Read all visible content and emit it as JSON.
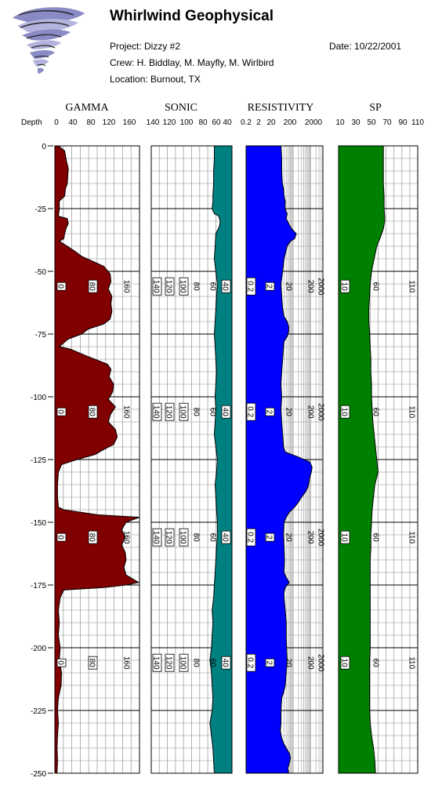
{
  "header": {
    "company": "Whirlwind Geophysical",
    "project": "Project: Dizzy #2",
    "crew": "Crew: H. Biddlay, M. Mayfly, M. Wirlbird",
    "location": "Location: Burnout, TX",
    "date": "Date: 10/22/2001",
    "logo_icon": "tornado-logo-icon"
  },
  "depth": {
    "label": "Depth",
    "ticks": [
      "0",
      "-25",
      "-50",
      "-75",
      "-100",
      "-125",
      "-150",
      "-175",
      "-200",
      "-225",
      "-250"
    ]
  },
  "chart_data": {
    "type": "line",
    "y_axis": {
      "name": "Depth",
      "range": [
        0,
        -250
      ],
      "major_step": 25
    },
    "tracks": [
      {
        "name": "GAMMA",
        "scale_labels": [
          "0",
          "40",
          "80",
          "120",
          "160"
        ],
        "range": [
          0,
          190
        ],
        "fill_color": "#800000",
        "fill_side": "left",
        "inline_labels": [
          "0",
          "80",
          "160"
        ],
        "points": [
          [
            0,
            8
          ],
          [
            -2,
            22
          ],
          [
            -6,
            26
          ],
          [
            -9,
            30
          ],
          [
            -12,
            29
          ],
          [
            -15,
            28
          ],
          [
            -17,
            24
          ],
          [
            -20,
            22
          ],
          [
            -22,
            10
          ],
          [
            -25,
            10
          ],
          [
            -28,
            8
          ],
          [
            -29,
            28
          ],
          [
            -31,
            30
          ],
          [
            -33,
            25
          ],
          [
            -35,
            22
          ],
          [
            -37,
            20
          ],
          [
            -38,
            10
          ],
          [
            -40,
            28
          ],
          [
            -42,
            45
          ],
          [
            -44,
            60
          ],
          [
            -46,
            85
          ],
          [
            -48,
            110
          ],
          [
            -51,
            124
          ],
          [
            -54,
            126
          ],
          [
            -57,
            120
          ],
          [
            -60,
            128
          ],
          [
            -63,
            126
          ],
          [
            -66,
            128
          ],
          [
            -69,
            124
          ],
          [
            -71,
            110
          ],
          [
            -73,
            75
          ],
          [
            -75,
            60
          ],
          [
            -77,
            30
          ],
          [
            -80,
            10
          ],
          [
            -81,
            35
          ],
          [
            -84,
            75
          ],
          [
            -87,
            118
          ],
          [
            -89,
            126
          ],
          [
            -92,
            122
          ],
          [
            -95,
            132
          ],
          [
            -98,
            130
          ],
          [
            -101,
            120
          ],
          [
            -104,
            136
          ],
          [
            -107,
            125
          ],
          [
            -110,
            120
          ],
          [
            -113,
            136
          ],
          [
            -116,
            140
          ],
          [
            -119,
            132
          ],
          [
            -121,
            110
          ],
          [
            -123,
            90
          ],
          [
            -125,
            50
          ],
          [
            -127,
            15
          ],
          [
            -130,
            8
          ],
          [
            -135,
            6
          ],
          [
            -140,
            6
          ],
          [
            -144,
            8
          ],
          [
            -145,
            20
          ],
          [
            -147,
            95
          ],
          [
            -148,
            190
          ],
          [
            -150,
            160
          ],
          [
            -153,
            150
          ],
          [
            -156,
            158
          ],
          [
            -159,
            150
          ],
          [
            -162,
            158
          ],
          [
            -165,
            160
          ],
          [
            -168,
            155
          ],
          [
            -171,
            160
          ],
          [
            -174,
            188
          ],
          [
            -175,
            160
          ],
          [
            -176,
            110
          ],
          [
            -177,
            20
          ],
          [
            -180,
            12
          ],
          [
            -185,
            8
          ],
          [
            -190,
            10
          ],
          [
            -195,
            8
          ],
          [
            -200,
            12
          ],
          [
            -205,
            10
          ],
          [
            -210,
            15
          ],
          [
            -215,
            14
          ],
          [
            -220,
            8
          ],
          [
            -225,
            6
          ],
          [
            -230,
            8
          ],
          [
            -235,
            6
          ],
          [
            -240,
            5
          ],
          [
            -245,
            6
          ],
          [
            -250,
            5
          ]
        ]
      },
      {
        "name": "SONIC",
        "scale_labels": [
          "140",
          "120",
          "100",
          "80",
          "60",
          "40"
        ],
        "range": [
          140,
          30
        ],
        "fill_color": "#008080",
        "fill_side": "right",
        "inline_labels": [
          "140",
          "120",
          "100",
          "80",
          "60",
          "40"
        ],
        "points": [
          [
            0,
            54
          ],
          [
            -5,
            54
          ],
          [
            -10,
            55
          ],
          [
            -15,
            55
          ],
          [
            -20,
            56
          ],
          [
            -22,
            56
          ],
          [
            -25,
            57
          ],
          [
            -27,
            54
          ],
          [
            -28,
            48
          ],
          [
            -30,
            46
          ],
          [
            -32,
            47
          ],
          [
            -35,
            52
          ],
          [
            -40,
            53
          ],
          [
            -45,
            54
          ],
          [
            -50,
            52
          ],
          [
            -55,
            50
          ],
          [
            -60,
            51
          ],
          [
            -65,
            52
          ],
          [
            -70,
            53
          ],
          [
            -75,
            54
          ],
          [
            -80,
            53
          ],
          [
            -85,
            52
          ],
          [
            -90,
            51
          ],
          [
            -95,
            52
          ],
          [
            -100,
            53
          ],
          [
            -105,
            52
          ],
          [
            -110,
            53
          ],
          [
            -115,
            54
          ],
          [
            -120,
            52
          ],
          [
            -125,
            50
          ],
          [
            -130,
            51
          ],
          [
            -135,
            53
          ],
          [
            -140,
            52
          ],
          [
            -145,
            51
          ],
          [
            -150,
            50
          ],
          [
            -155,
            50
          ],
          [
            -160,
            51
          ],
          [
            -165,
            52
          ],
          [
            -170,
            53
          ],
          [
            -175,
            54
          ],
          [
            -180,
            55
          ],
          [
            -185,
            57
          ],
          [
            -190,
            56
          ],
          [
            -195,
            57
          ],
          [
            -200,
            58
          ],
          [
            -205,
            60
          ],
          [
            -210,
            58
          ],
          [
            -215,
            57
          ],
          [
            -220,
            56
          ],
          [
            -225,
            57
          ],
          [
            -230,
            60
          ],
          [
            -235,
            58
          ],
          [
            -240,
            56
          ],
          [
            -245,
            55
          ],
          [
            -250,
            54
          ]
        ]
      },
      {
        "name": "RESISTIVITY",
        "scale_labels": [
          "0.2",
          "2",
          "20",
          "200",
          "2000"
        ],
        "range": [
          0.2,
          5000
        ],
        "log": true,
        "fill_color": "#0000ff",
        "fill_side": "left",
        "inline_labels": [
          "0.2",
          "2",
          "20",
          "200",
          "2000"
        ],
        "points": [
          [
            0,
            20
          ],
          [
            -5,
            22
          ],
          [
            -10,
            22
          ],
          [
            -15,
            24
          ],
          [
            -17,
            28
          ],
          [
            -20,
            30
          ],
          [
            -22,
            35
          ],
          [
            -25,
            34
          ],
          [
            -27,
            45
          ],
          [
            -29,
            40
          ],
          [
            -31,
            55
          ],
          [
            -33,
            80
          ],
          [
            -35,
            150
          ],
          [
            -37,
            120
          ],
          [
            -38,
            70
          ],
          [
            -40,
            45
          ],
          [
            -45,
            30
          ],
          [
            -50,
            25
          ],
          [
            -55,
            20
          ],
          [
            -60,
            22
          ],
          [
            -65,
            25
          ],
          [
            -68,
            30
          ],
          [
            -70,
            45
          ],
          [
            -72,
            55
          ],
          [
            -74,
            55
          ],
          [
            -76,
            45
          ],
          [
            -78,
            30
          ],
          [
            -80,
            28
          ],
          [
            -85,
            25
          ],
          [
            -90,
            22
          ],
          [
            -95,
            20
          ],
          [
            -100,
            22
          ],
          [
            -105,
            20
          ],
          [
            -110,
            22
          ],
          [
            -115,
            25
          ],
          [
            -120,
            28
          ],
          [
            -122,
            35
          ],
          [
            -124,
            200
          ],
          [
            -126,
            900
          ],
          [
            -128,
            1200
          ],
          [
            -130,
            1100
          ],
          [
            -132,
            900
          ],
          [
            -134,
            800
          ],
          [
            -136,
            700
          ],
          [
            -138,
            500
          ],
          [
            -140,
            300
          ],
          [
            -142,
            200
          ],
          [
            -144,
            120
          ],
          [
            -146,
            60
          ],
          [
            -148,
            40
          ],
          [
            -150,
            30
          ],
          [
            -155,
            28
          ],
          [
            -160,
            30
          ],
          [
            -165,
            32
          ],
          [
            -170,
            30
          ],
          [
            -172,
            40
          ],
          [
            -174,
            60
          ],
          [
            -176,
            35
          ],
          [
            -178,
            30
          ],
          [
            -180,
            30
          ],
          [
            -185,
            35
          ],
          [
            -190,
            40
          ],
          [
            -195,
            40
          ],
          [
            -200,
            42
          ],
          [
            -205,
            45
          ],
          [
            -210,
            40
          ],
          [
            -215,
            35
          ],
          [
            -218,
            28
          ],
          [
            -220,
            22
          ],
          [
            -225,
            20
          ],
          [
            -230,
            20
          ],
          [
            -233,
            18
          ],
          [
            -236,
            22
          ],
          [
            -238,
            28
          ],
          [
            -240,
            40
          ],
          [
            -242,
            60
          ],
          [
            -244,
            70
          ],
          [
            -246,
            60
          ],
          [
            -248,
            50
          ],
          [
            -250,
            55
          ]
        ]
      },
      {
        "name": "SP",
        "scale_labels": [
          "10",
          "30",
          "50",
          "70",
          "90",
          "110"
        ],
        "range": [
          0,
          120
        ],
        "fill_color": "#008000",
        "fill_side": "left",
        "inline_labels": [
          "10",
          "60",
          "110"
        ],
        "points": [
          [
            0,
            68
          ],
          [
            -5,
            68
          ],
          [
            -10,
            68
          ],
          [
            -15,
            68
          ],
          [
            -20,
            69
          ],
          [
            -25,
            69
          ],
          [
            -28,
            70
          ],
          [
            -30,
            70
          ],
          [
            -33,
            68
          ],
          [
            -36,
            64
          ],
          [
            -40,
            58
          ],
          [
            -45,
            54
          ],
          [
            -50,
            50
          ],
          [
            -55,
            48
          ],
          [
            -60,
            47
          ],
          [
            -65,
            46
          ],
          [
            -70,
            46
          ],
          [
            -75,
            47
          ],
          [
            -80,
            48
          ],
          [
            -85,
            49
          ],
          [
            -90,
            49
          ],
          [
            -95,
            50
          ],
          [
            -100,
            50
          ],
          [
            -105,
            51
          ],
          [
            -110,
            52
          ],
          [
            -115,
            54
          ],
          [
            -120,
            56
          ],
          [
            -125,
            58
          ],
          [
            -128,
            59
          ],
          [
            -130,
            60
          ],
          [
            -132,
            58
          ],
          [
            -135,
            55
          ],
          [
            -140,
            53
          ],
          [
            -145,
            51
          ],
          [
            -150,
            50
          ],
          [
            -155,
            49
          ],
          [
            -160,
            49
          ],
          [
            -165,
            48
          ],
          [
            -170,
            48
          ],
          [
            -175,
            48
          ],
          [
            -180,
            48
          ],
          [
            -185,
            48
          ],
          [
            -190,
            48
          ],
          [
            -195,
            48
          ],
          [
            -200,
            48
          ],
          [
            -205,
            47
          ],
          [
            -210,
            47
          ],
          [
            -215,
            47
          ],
          [
            -220,
            47
          ],
          [
            -225,
            47
          ],
          [
            -230,
            48
          ],
          [
            -235,
            50
          ],
          [
            -240,
            53
          ],
          [
            -245,
            55
          ],
          [
            -250,
            56
          ]
        ]
      }
    ]
  }
}
